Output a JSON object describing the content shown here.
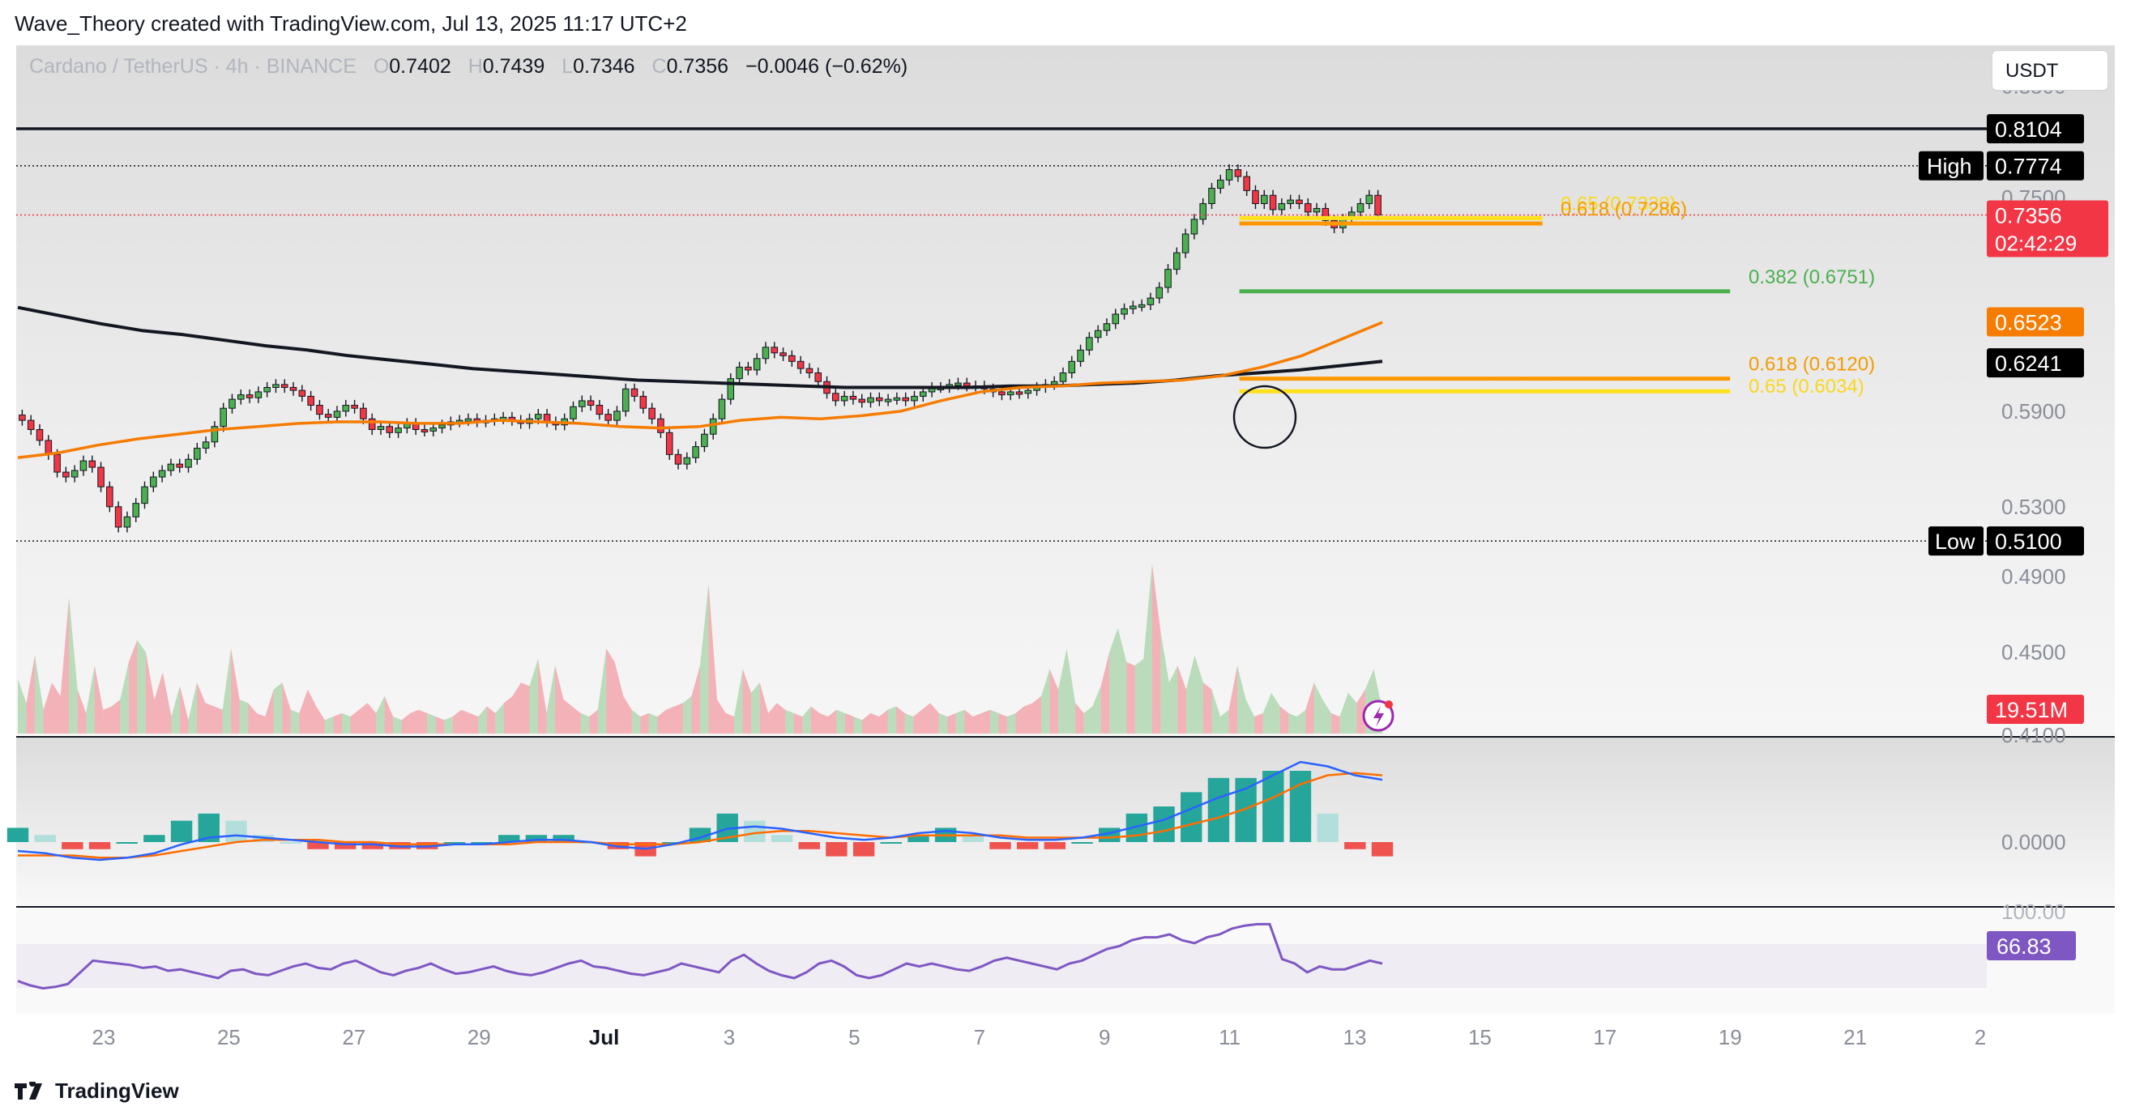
{
  "header": {
    "credit": "Wave_Theory created with TradingView.com, Jul 13, 2025 11:17 UTC+2",
    "symbol": "Cardano / TetherUS · 4h · BINANCE",
    "ohlc": [
      {
        "label": "O",
        "value": "0.7402"
      },
      {
        "label": "H",
        "value": "0.7439"
      },
      {
        "label": "L",
        "value": "0.7346"
      },
      {
        "label": "C",
        "value": "0.7356"
      }
    ],
    "change": "−0.0046 (−0.62%)",
    "currency": "USDT"
  },
  "footer": {
    "brand": "TradingView",
    "logo_icon": "tradingview-logo-icon"
  },
  "colors": {
    "up": "#26a69a",
    "down": "#ef5350",
    "candle_up": "#4caf50",
    "candle_down": "#f23645",
    "ema_black": "#131722",
    "ema_orange": "#f57c00",
    "fib_yellow": "#ffe11a",
    "fib_orange": "#ff9800",
    "fib_green": "#4caf50",
    "macd": "#2962ff",
    "signal": "#ff6d00",
    "rsi": "#7e57c2"
  },
  "chart_data": [
    {
      "type": "candlestick",
      "pair": "ADA/USDT",
      "timeframe": "4h",
      "y_scale": "log",
      "ylim": [
        0.41,
        0.89
      ],
      "y_ticks": [
        "0.8500",
        "0.7500",
        "0.5900",
        "0.5300",
        "0.4900",
        "0.4500",
        "0.4100"
      ],
      "x_ticks": [
        "23",
        "25",
        "27",
        "29",
        "Jul",
        "3",
        "5",
        "7",
        "9",
        "11",
        "13",
        "15",
        "17",
        "19",
        "21",
        "2"
      ],
      "candles_close": [
        0.584,
        0.578,
        0.571,
        0.562,
        0.551,
        0.548,
        0.552,
        0.558,
        0.554,
        0.542,
        0.53,
        0.518,
        0.524,
        0.532,
        0.542,
        0.548,
        0.552,
        0.556,
        0.554,
        0.559,
        0.566,
        0.57,
        0.58,
        0.592,
        0.598,
        0.601,
        0.599,
        0.603,
        0.606,
        0.608,
        0.606,
        0.604,
        0.6,
        0.594,
        0.588,
        0.586,
        0.59,
        0.594,
        0.592,
        0.585,
        0.578,
        0.58,
        0.576,
        0.579,
        0.582,
        0.578,
        0.577,
        0.579,
        0.581,
        0.583,
        0.584,
        0.585,
        0.583,
        0.584,
        0.585,
        0.586,
        0.584,
        0.582,
        0.585,
        0.588,
        0.583,
        0.581,
        0.585,
        0.593,
        0.597,
        0.594,
        0.588,
        0.584,
        0.59,
        0.605,
        0.6,
        0.592,
        0.585,
        0.576,
        0.562,
        0.556,
        0.56,
        0.567,
        0.575,
        0.585,
        0.598,
        0.612,
        0.62,
        0.618,
        0.626,
        0.634,
        0.63,
        0.628,
        0.624,
        0.619,
        0.616,
        0.61,
        0.602,
        0.597,
        0.6,
        0.598,
        0.596,
        0.599,
        0.597,
        0.598,
        0.599,
        0.597,
        0.6,
        0.603,
        0.606,
        0.606,
        0.608,
        0.609,
        0.607,
        0.607,
        0.605,
        0.603,
        0.601,
        0.603,
        0.602,
        0.604,
        0.606,
        0.608,
        0.61,
        0.616,
        0.624,
        0.632,
        0.641,
        0.646,
        0.651,
        0.658,
        0.662,
        0.664,
        0.665,
        0.67,
        0.678,
        0.692,
        0.705,
        0.72,
        0.732,
        0.745,
        0.758,
        0.765,
        0.774,
        0.768,
        0.756,
        0.745,
        0.752,
        0.74,
        0.745,
        0.748,
        0.745,
        0.738,
        0.741,
        0.731,
        0.725,
        0.732,
        0.738,
        0.745,
        0.752,
        0.7356
      ],
      "levels": [
        {
          "name": "0.8104",
          "value": 0.8104,
          "style": "resistance"
        },
        {
          "name": "High",
          "value": 0.7774,
          "style": "dotted"
        },
        {
          "name": "0.7356",
          "value": 0.7356,
          "style": "last-price",
          "countdown": "02:42:29"
        },
        {
          "name": "Low",
          "value": 0.51,
          "style": "dotted"
        }
      ],
      "fib_lines": [
        {
          "label": "0.65 (0.7330)",
          "value": 0.733,
          "color": "yellow",
          "x_start": "Jul 11",
          "x_end": "Jul 16"
        },
        {
          "label": "0.618 (0.7286)",
          "value": 0.7286,
          "color": "orange",
          "x_start": "Jul 11",
          "x_end": "Jul 16"
        },
        {
          "label": "0.382 (0.6751)",
          "value": 0.6751,
          "color": "green",
          "x_start": "Jul 11",
          "x_end": "Jul 19"
        },
        {
          "label": "0.618 (0.6120)",
          "value": 0.612,
          "color": "orange",
          "x_start": "Jul 11",
          "x_end": "Jul 19"
        },
        {
          "label": "0.65 (0.6034)",
          "value": 0.6034,
          "color": "yellow",
          "x_start": "Jul 11",
          "x_end": "Jul 19"
        }
      ],
      "ema_50": {
        "last": "0.6523",
        "values": [
          0.56,
          0.563,
          0.568,
          0.572,
          0.575,
          0.578,
          0.58,
          0.582,
          0.583,
          0.583,
          0.582,
          0.582,
          0.584,
          0.583,
          0.582,
          0.58,
          0.579,
          0.58,
          0.584,
          0.586,
          0.585,
          0.587,
          0.59,
          0.597,
          0.603,
          0.606,
          0.607,
          0.609,
          0.61,
          0.611,
          0.614,
          0.62,
          0.628,
          0.64,
          0.652
        ]
      },
      "ema_200": {
        "last": "0.6241",
        "values": [
          0.663,
          0.657,
          0.651,
          0.646,
          0.643,
          0.639,
          0.635,
          0.632,
          0.628,
          0.625,
          0.622,
          0.619,
          0.617,
          0.615,
          0.613,
          0.611,
          0.61,
          0.609,
          0.608,
          0.607,
          0.606,
          0.606,
          0.606,
          0.606,
          0.607,
          0.607,
          0.608,
          0.609,
          0.611,
          0.614,
          0.616,
          0.618,
          0.621,
          0.624
        ]
      },
      "annotation": "circle-golden-cross-marker"
    },
    {
      "type": "area",
      "name": "Volume",
      "last_label": "19.51M",
      "values": [
        32,
        18,
        46,
        14,
        30,
        22,
        80,
        26,
        12,
        40,
        14,
        16,
        20,
        42,
        55,
        48,
        20,
        36,
        10,
        28,
        8,
        30,
        18,
        16,
        14,
        50,
        20,
        18,
        12,
        10,
        26,
        30,
        14,
        12,
        26,
        16,
        8,
        10,
        12,
        10,
        14,
        18,
        12,
        22,
        10,
        8,
        12,
        14,
        12,
        10,
        8,
        10,
        14,
        12,
        10,
        16,
        12,
        18,
        22,
        30,
        28,
        44,
        12,
        40,
        20,
        16,
        12,
        10,
        14,
        50,
        42,
        22,
        14,
        10,
        12,
        10,
        14,
        16,
        18,
        22,
        40,
        88,
        20,
        12,
        10,
        38,
        24,
        30,
        12,
        18,
        14,
        12,
        10,
        16,
        12,
        10,
        14,
        12,
        10,
        8,
        12,
        10,
        14,
        16,
        12,
        10,
        14,
        18,
        12,
        10,
        12,
        14,
        10,
        12,
        14,
        12,
        10,
        12,
        16,
        18,
        22,
        38,
        26,
        50,
        18,
        12,
        16,
        28,
        48,
        62,
        42,
        40,
        44,
        100,
        60,
        30,
        40,
        26,
        46,
        30,
        26,
        10,
        14,
        40,
        20,
        10,
        12,
        24,
        16,
        12,
        10,
        14,
        30,
        20,
        12,
        10,
        24,
        18,
        26,
        38,
        14
      ]
    },
    {
      "type": "histogram+line",
      "name": "MACD",
      "y_ticks": [
        "0.0000"
      ],
      "macd": [
        -0.004,
        -0.005,
        -0.007,
        -0.008,
        -0.007,
        -0.005,
        -0.001,
        0.002,
        0.003,
        0.002,
        0.001,
        0,
        -0.001,
        -0.001,
        -0.002,
        -0.002,
        -0.001,
        -0.001,
        0,
        0.001,
        0.001,
        0,
        -0.002,
        -0.003,
        -0.001,
        0.002,
        0.006,
        0.007,
        0.006,
        0.004,
        0.002,
        0.001,
        0.002,
        0.004,
        0.005,
        0.004,
        0.002,
        0.001,
        0.001,
        0.002,
        0.004,
        0.007,
        0.01,
        0.015,
        0.02,
        0.024,
        0.03,
        0.036,
        0.034,
        0.03,
        0.028
      ],
      "signal": [
        -0.006,
        -0.006,
        -0.006,
        -0.007,
        -0.007,
        -0.006,
        -0.004,
        -0.002,
        0,
        0.001,
        0.001,
        0.001,
        0,
        0,
        -0.001,
        -0.001,
        -0.001,
        -0.001,
        -0.001,
        0,
        0,
        0,
        -0.001,
        -0.001,
        -0.001,
        0,
        0.002,
        0.004,
        0.005,
        0.005,
        0.004,
        0.003,
        0.002,
        0.003,
        0.003,
        0.003,
        0.003,
        0.002,
        0.002,
        0.002,
        0.002,
        0.003,
        0.005,
        0.008,
        0.011,
        0.015,
        0.02,
        0.026,
        0.03,
        0.031,
        0.03
      ]
    },
    {
      "type": "line",
      "name": "RSI",
      "last_label": "66.83",
      "y_ticks": [
        "100.00"
      ],
      "values": [
        48,
        45,
        43,
        44,
        46,
        54,
        62,
        61,
        60,
        59,
        57,
        58,
        55,
        56,
        54,
        52,
        50,
        55,
        56,
        53,
        52,
        55,
        58,
        60,
        57,
        56,
        60,
        62,
        58,
        54,
        52,
        55,
        57,
        60,
        56,
        53,
        54,
        56,
        58,
        55,
        53,
        52,
        54,
        57,
        60,
        62,
        58,
        57,
        55,
        53,
        52,
        54,
        56,
        60,
        58,
        56,
        54,
        62,
        66,
        60,
        55,
        52,
        50,
        54,
        60,
        62,
        58,
        52,
        50,
        52,
        56,
        60,
        58,
        60,
        58,
        56,
        55,
        58,
        62,
        64,
        62,
        60,
        58,
        56,
        60,
        62,
        66,
        70,
        72,
        76,
        78,
        78,
        80,
        76,
        74,
        78,
        80,
        84,
        86,
        87,
        87,
        63,
        60,
        54,
        58,
        56,
        56,
        59,
        62,
        60
      ]
    }
  ]
}
